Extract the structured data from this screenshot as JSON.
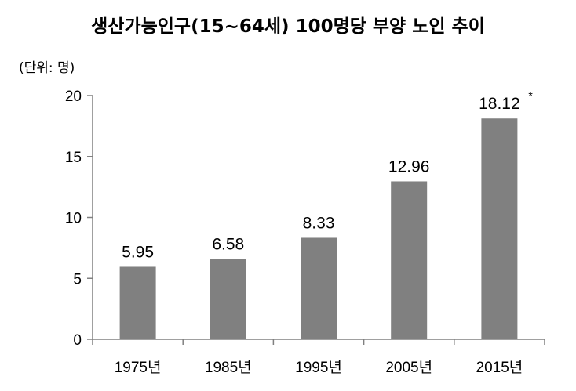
{
  "chart_data": {
    "type": "bar",
    "title": "생산가능인구(15~64세) 100명당 부양 노인 추이",
    "unit_label": "(단위: 명)",
    "categories": [
      "1975년",
      "1985년",
      "1995년",
      "2005년",
      "2015년"
    ],
    "values": [
      5.95,
      6.58,
      8.33,
      12.96,
      18.12
    ],
    "data_labels": [
      "5.95",
      "6.58",
      "8.33",
      "12.96",
      "18.12"
    ],
    "annotation": "*",
    "yticks": [
      0,
      5,
      10,
      15,
      20
    ],
    "ylim": [
      0,
      20
    ],
    "grid": false,
    "bar_color": "#808080"
  }
}
